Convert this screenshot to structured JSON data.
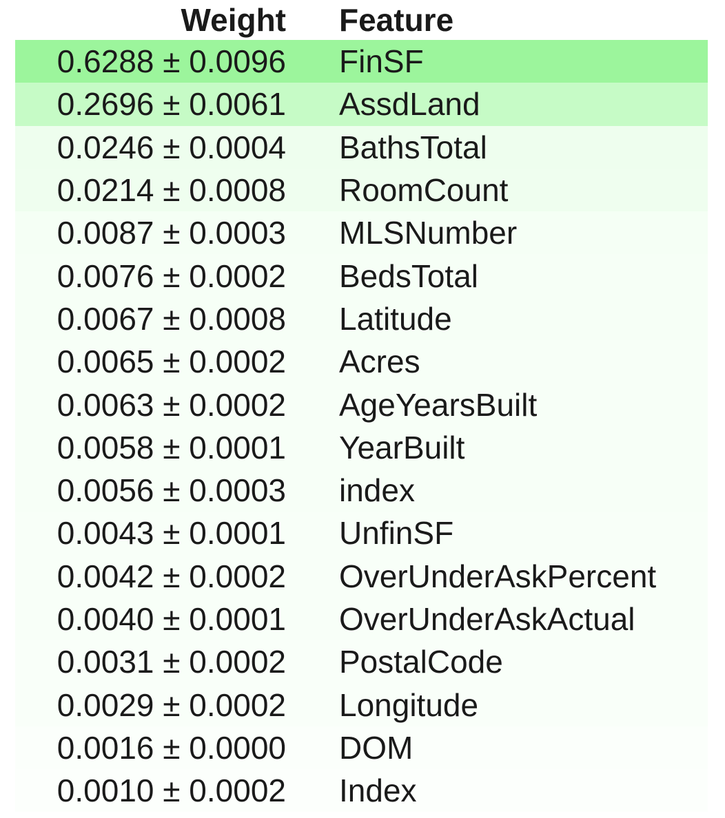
{
  "header": {
    "weight_label": "Weight",
    "feature_label": "Feature"
  },
  "rows": [
    {
      "weight": "0.6288 ± 0.0096",
      "feature": "FinSF",
      "bg": "#9cf59c"
    },
    {
      "weight": "0.2696 ± 0.0061",
      "feature": "AssdLand",
      "bg": "#c6fbc6"
    },
    {
      "weight": "0.0246 ± 0.0004",
      "feature": "BathsTotal",
      "bg": "#eefeee"
    },
    {
      "weight": "0.0214 ± 0.0008",
      "feature": "RoomCount",
      "bg": "#effeef"
    },
    {
      "weight": "0.0087 ± 0.0003",
      "feature": "MLSNumber",
      "bg": "#f5fff5"
    },
    {
      "weight": "0.0076 ± 0.0002",
      "feature": "BedsTotal",
      "bg": "#f6fff6"
    },
    {
      "weight": "0.0067 ± 0.0008",
      "feature": "Latitude",
      "bg": "#f6fff6"
    },
    {
      "weight": "0.0065 ± 0.0002",
      "feature": "Acres",
      "bg": "#f7fff7"
    },
    {
      "weight": "0.0063 ± 0.0002",
      "feature": "AgeYearsBuilt",
      "bg": "#f7fff7"
    },
    {
      "weight": "0.0058 ± 0.0001",
      "feature": "YearBuilt",
      "bg": "#f7fff7"
    },
    {
      "weight": "0.0056 ± 0.0003",
      "feature": "index",
      "bg": "#f7fff7"
    },
    {
      "weight": "0.0043 ± 0.0001",
      "feature": "UnfinSF",
      "bg": "#f8fff8"
    },
    {
      "weight": "0.0042 ± 0.0002",
      "feature": "OverUnderAskPercent",
      "bg": "#f8fff8"
    },
    {
      "weight": "0.0040 ± 0.0001",
      "feature": "OverUnderAskActual",
      "bg": "#f8fff8"
    },
    {
      "weight": "0.0031 ± 0.0002",
      "feature": "PostalCode",
      "bg": "#f9fff9"
    },
    {
      "weight": "0.0029 ± 0.0002",
      "feature": "Longitude",
      "bg": "#f9fff9"
    },
    {
      "weight": "0.0016 ± 0.0000",
      "feature": "DOM",
      "bg": "#fbfffb"
    },
    {
      "weight": "0.0010 ± 0.0002",
      "feature": "Index",
      "bg": "#fcfffc"
    }
  ]
}
